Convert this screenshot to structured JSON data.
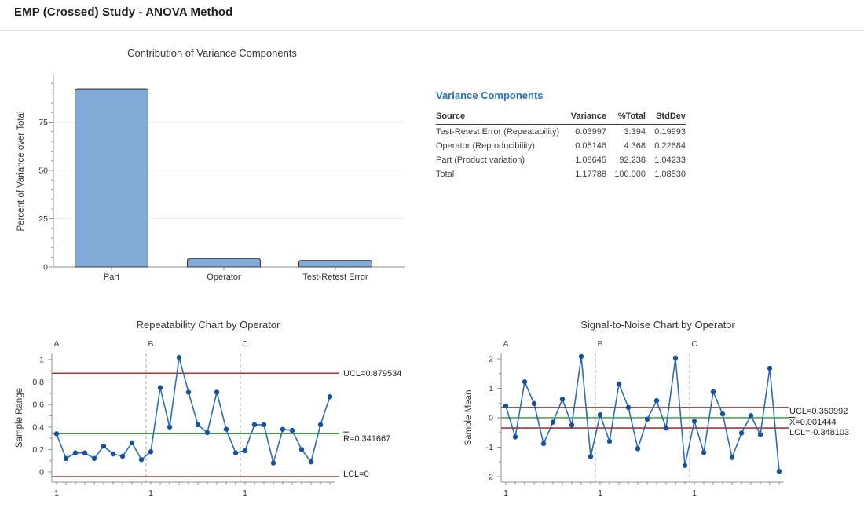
{
  "header": {
    "title": "EMP (Crossed) Study - ANOVA Method"
  },
  "variance_table": {
    "heading": "Variance Components",
    "columns": [
      "Source",
      "Variance",
      "%Total",
      "StdDev"
    ],
    "rows": [
      [
        "Test-Retest Error (Repeatability)",
        "0.03997",
        "3.394",
        "0.19993"
      ],
      [
        "Operator (Reproducibility)",
        "0.05146",
        "4.368",
        "0.22684"
      ],
      [
        "Part (Product variation)",
        "1.08645",
        "92.238",
        "1.04233"
      ],
      [
        "Total",
        "1.17788",
        "100.000",
        "1.08530"
      ]
    ]
  },
  "chart_data": [
    {
      "id": "contribution",
      "type": "bar",
      "title": "Contribution of Variance Components",
      "xlabel": "",
      "ylabel": "Percent of Variance over Total",
      "categories": [
        "Part",
        "Operator",
        "Test-Retest Error"
      ],
      "values": [
        92.238,
        4.368,
        3.394
      ],
      "ylim": [
        0,
        100
      ],
      "yticks": [
        0,
        25,
        50,
        75
      ],
      "grid": true
    },
    {
      "id": "repeatability",
      "type": "line",
      "title": "Repeatability Chart by Operator",
      "ylabel": "Sample Range",
      "sections": [
        "A",
        "B",
        "C"
      ],
      "x_tick_labels": [
        "1",
        "1",
        "1"
      ],
      "points_per_section": 10,
      "ucl": 0.879534,
      "center": 0.341667,
      "lcl": 0,
      "ucl_label": "UCL=0.879534",
      "center_label": "R=0.341667",
      "center_symbol_decoration": "overbar",
      "lcl_label": "LCL=0",
      "yticks": [
        0,
        0.2,
        0.4,
        0.6,
        0.8,
        1
      ],
      "ylim": [
        -0.09,
        1.06
      ],
      "values": [
        0.34,
        0.12,
        0.17,
        0.17,
        0.12,
        0.23,
        0.16,
        0.14,
        0.26,
        0.11,
        0.18,
        0.75,
        0.4,
        1.02,
        0.71,
        0.42,
        0.35,
        0.71,
        0.38,
        0.17,
        0.19,
        0.42,
        0.42,
        0.08,
        0.38,
        0.37,
        0.2,
        0.09,
        0.42,
        0.67
      ]
    },
    {
      "id": "signal_to_noise",
      "type": "line",
      "title": "Signal-to-Noise Chart by Operator",
      "ylabel": "Sample Mean",
      "sections": [
        "A",
        "B",
        "C"
      ],
      "x_tick_labels": [
        "1",
        "1",
        "1"
      ],
      "points_per_section": 10,
      "ucl": 0.350992,
      "center": 0.001444,
      "lcl": -0.348103,
      "ucl_label": "UCL=0.350992",
      "center_label": "X=0.001444",
      "center_symbol_decoration": "double-overbar",
      "lcl_label": "LCL=-0.348103",
      "yticks": [
        -2,
        -1,
        0,
        1,
        2
      ],
      "ylim": [
        -2.2,
        2.2
      ],
      "values": [
        0.4,
        -0.65,
        1.22,
        0.48,
        -0.88,
        -0.15,
        0.63,
        -0.25,
        2.08,
        -1.32,
        0.1,
        -0.8,
        1.15,
        0.35,
        -1.05,
        -0.05,
        0.58,
        -0.35,
        2.03,
        -1.62,
        -0.12,
        -1.18,
        0.88,
        0.13,
        -1.35,
        -0.52,
        0.07,
        -0.57,
        1.68,
        -1.82
      ]
    }
  ],
  "colors": {
    "accent_heading": "#2776bd",
    "bar_fill": "#82aad7",
    "bar_stroke": "#3c3c3c",
    "line": "#2e6db4",
    "marker": "#17529e",
    "control_limit": "#8a1416",
    "center_line": "#008000",
    "axis": "#8f8f8f",
    "grid": "#ececec",
    "separator": "#ababab",
    "text": "#333333",
    "label_text": "#262626"
  }
}
